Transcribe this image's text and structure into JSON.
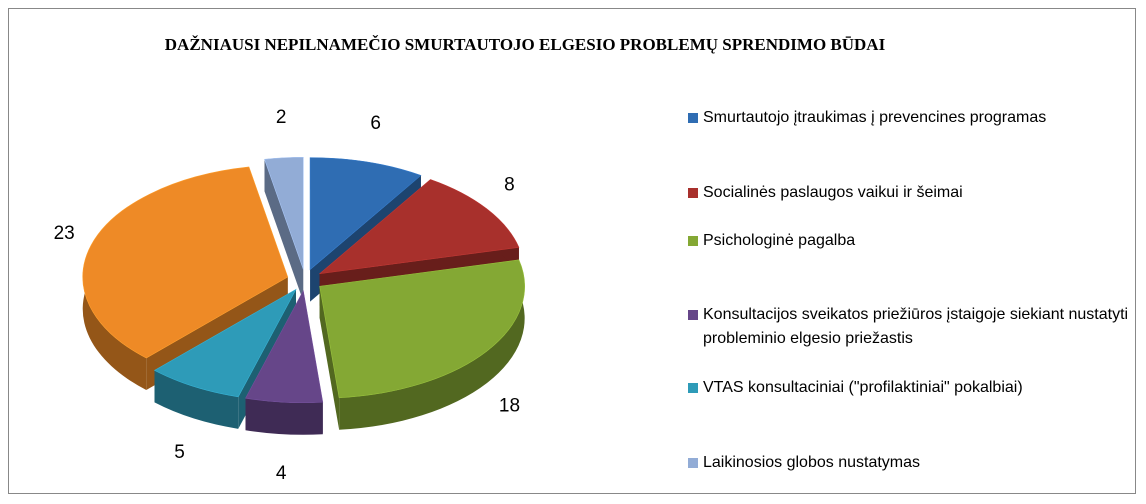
{
  "chart_data": {
    "type": "pie3d",
    "title": "DAŽNIAUSI NEPILNAMEČIO SMURTAUTOJO ELGESIO PROBLEMŲ SPRENDIMO BŪDAI",
    "categories": [
      "Smurtautojo įtraukimas į prevencines programas",
      "Socialinės paslaugos vaikui ir šeimai",
      "Psichologinė pagalba",
      "Konsultacijos sveikatos priežiūros įstaigoje siekiant nustatyti probleminio elgesio priežastis",
      "VTAS konsultaciniai (\"profilaktiniai\" pokalbiai)",
      "Laikinosios globos nustatymas"
    ],
    "slices": [
      {
        "name": "Smurtautojo įtraukimas į prevencines programas",
        "value": 6,
        "color": "#2f6db3"
      },
      {
        "name": "Socialinės paslaugos vaikui ir šeimai",
        "value": 8,
        "color": "#a8302c"
      },
      {
        "name": "Psichologinė pagalba",
        "value": 18,
        "color": "#84a834"
      },
      {
        "name": "Konsultacijos sveikatos priežiūros įstaigoje siekiant nustatyti probleminio elgesio priežastis",
        "value": 4,
        "color": "#664689"
      },
      {
        "name": "VTAS konsultaciniai (\"profilaktiniai\" pokalbiai)",
        "value": 5,
        "color": "#2e9bb8"
      },
      {
        "value": 23,
        "color": "#ee8a26"
      },
      {
        "name": "Laikinosios globos nustatymas",
        "value": 2,
        "color": "#92acd6"
      }
    ],
    "legend": "right"
  }
}
